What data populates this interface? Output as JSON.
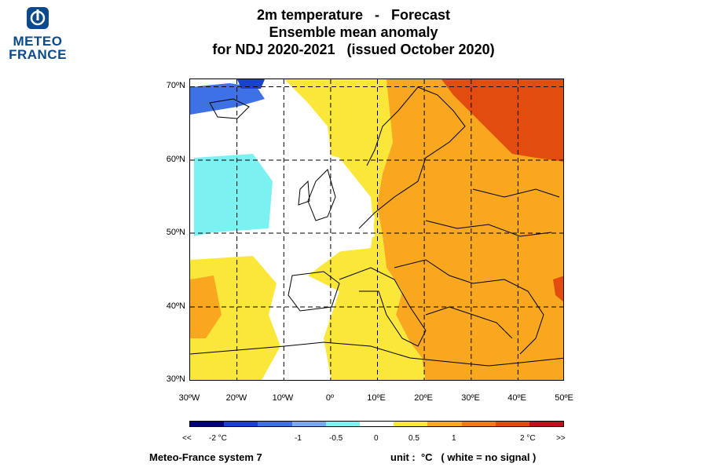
{
  "logo": {
    "line1": "METEO",
    "line2": "FRANCE"
  },
  "title": {
    "line1": "2m temperature   -   Forecast",
    "line2": "Ensemble mean anomaly",
    "line3": "for NDJ 2020-2021   (issued October 2020)"
  },
  "axes": {
    "lat_labels": [
      "70ºN",
      "60ºN",
      "50ºN",
      "40ºN",
      "30ºN"
    ],
    "lon_labels": [
      "30ºW",
      "20ºW",
      "10ºW",
      "0º",
      "10ºE",
      "20ºE",
      "30ºE",
      "40ºE",
      "50ºE"
    ]
  },
  "legend": {
    "colors": [
      "#00007a",
      "#1b3fd0",
      "#3f71e6",
      "#7aa9f0",
      "#7cf1f1",
      "#ffffff",
      "#fbe73a",
      "#f9a71f",
      "#f27a16",
      "#e24d0f",
      "#c0101e"
    ],
    "labels": [
      "<<",
      "-2 °C",
      "-1",
      "-0.5",
      "0",
      "0.5",
      "1",
      "2 °C",
      ">>"
    ]
  },
  "footer": {
    "left": "Meteo-France system 7",
    "right": "unit :  °C   ( white = no signal )"
  }
}
